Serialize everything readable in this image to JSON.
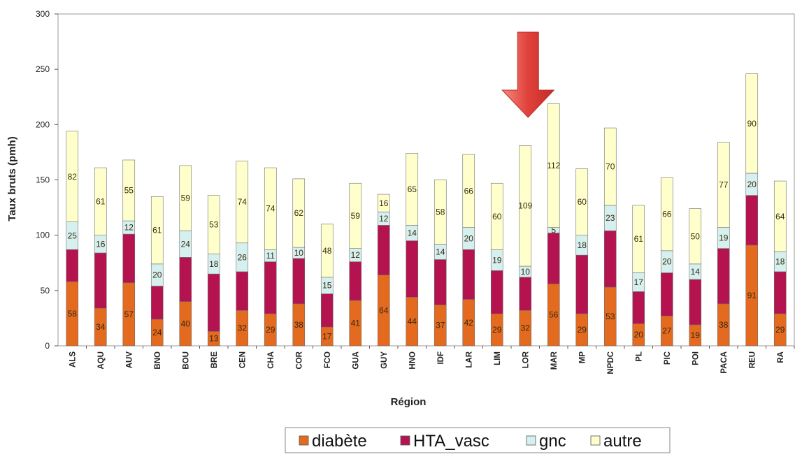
{
  "chart_data": {
    "type": "bar",
    "stacked": true,
    "title": "",
    "xlabel": "Région",
    "ylabel": "Taux bruts (pmh)",
    "ylim": [
      0,
      300
    ],
    "yticks": [
      0,
      50,
      100,
      150,
      200,
      250,
      300
    ],
    "grid": false,
    "legend_position": "bottom",
    "categories": [
      "ALS",
      "AQU",
      "AUV",
      "BNO",
      "BOU",
      "BRE",
      "CEN",
      "CHA",
      "COR",
      "FCO",
      "GUA",
      "GUY",
      "HNO",
      "IDF",
      "LAR",
      "LIM",
      "LOR",
      "MAR",
      "MP",
      "NPDC",
      "PL",
      "PIC",
      "POI",
      "PACA",
      "REU",
      "RA"
    ],
    "series": [
      {
        "name": "diabète",
        "color": "#e36a1e",
        "values": [
          58,
          34,
          57,
          24,
          40,
          13,
          32,
          29,
          38,
          17,
          41,
          64,
          44,
          37,
          42,
          29,
          32,
          56,
          29,
          53,
          20,
          27,
          19,
          38,
          91,
          29
        ]
      },
      {
        "name": "HTA_vasc",
        "color": "#b4134f",
        "values": [
          29,
          50,
          44,
          30,
          40,
          52,
          35,
          47,
          41,
          30,
          35,
          45,
          51,
          41,
          45,
          39,
          30,
          46,
          53,
          51,
          29,
          39,
          41,
          50,
          45,
          38
        ]
      },
      {
        "name": "gnc",
        "color": "#d6f0ef",
        "values": [
          25,
          16,
          12,
          20,
          24,
          18,
          26,
          11,
          10,
          15,
          12,
          12,
          14,
          14,
          20,
          19,
          10,
          5,
          18,
          23,
          17,
          20,
          14,
          19,
          20,
          18
        ]
      },
      {
        "name": "autre",
        "color": "#ffffcc",
        "values": [
          82,
          61,
          55,
          61,
          59,
          53,
          74,
          74,
          62,
          48,
          59,
          16,
          65,
          58,
          66,
          60,
          109,
          112,
          60,
          70,
          61,
          66,
          50,
          77,
          90,
          64
        ]
      }
    ],
    "visible_value_labels": {
      "diabète": [
        58,
        34,
        57,
        24,
        40,
        13,
        32,
        29,
        38,
        17,
        41,
        64,
        44,
        37,
        42,
        29,
        32,
        56,
        29,
        53,
        20,
        27,
        19,
        38,
        91,
        29
      ],
      "gnc": [
        25,
        16,
        12,
        20,
        24,
        18,
        26,
        11,
        10,
        15,
        12,
        12,
        14,
        14,
        20,
        19,
        10,
        5,
        18,
        23,
        17,
        20,
        14,
        19,
        20,
        18
      ],
      "autre": [
        82,
        61,
        55,
        61,
        59,
        53,
        74,
        74,
        62,
        48,
        59,
        16,
        65,
        58,
        66,
        60,
        109,
        112,
        60,
        70,
        61,
        66,
        50,
        77,
        90,
        64
      ]
    },
    "annotations": [
      {
        "type": "arrow",
        "direction": "down",
        "target_category": "LOR",
        "color": "#e0413a"
      }
    ]
  }
}
